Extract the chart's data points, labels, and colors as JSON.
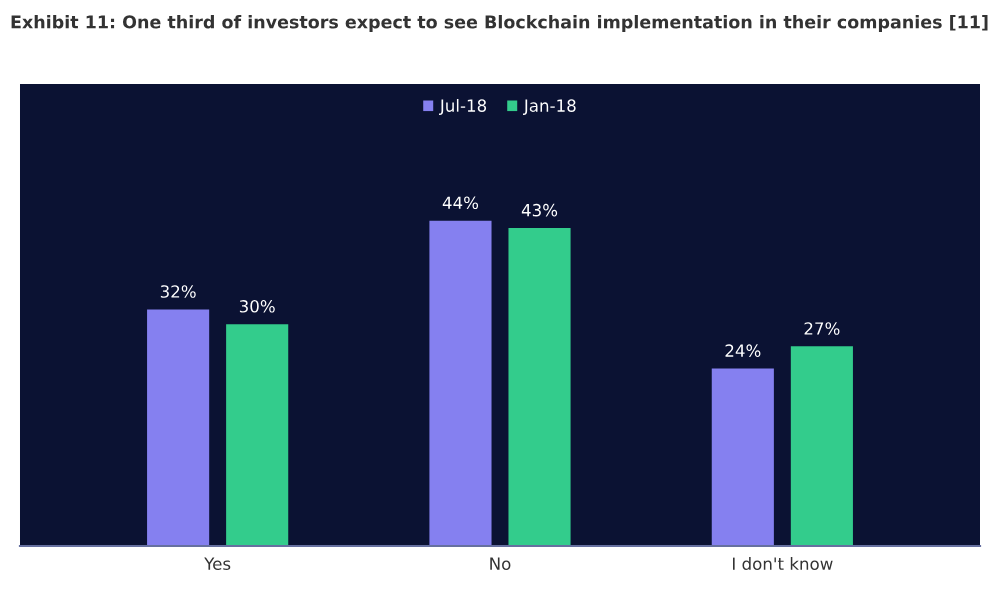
{
  "chart_data": {
    "type": "bar",
    "title": "Exhibit 11: One third of investors expect to see Blockchain implementation in their companies [11]",
    "categories": [
      "Yes",
      "No",
      "I don't know"
    ],
    "series": [
      {
        "name": "Jul-18",
        "color": "#8580f0",
        "values": [
          32,
          44,
          24
        ],
        "value_labels": [
          "32%",
          "44%",
          "24%"
        ]
      },
      {
        "name": "Jan-18",
        "color": "#33cc8c",
        "values": [
          30,
          43,
          27
        ],
        "value_labels": [
          "30%",
          "43%",
          "27%"
        ]
      }
    ],
    "legend": "top"
  }
}
